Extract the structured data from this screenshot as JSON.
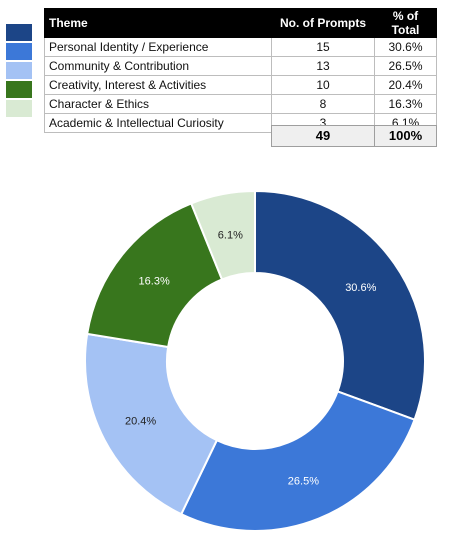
{
  "table": {
    "headers": [
      "Theme",
      "No. of Prompts",
      "% of Total"
    ],
    "rows": [
      {
        "theme": "Personal Identity / Experience",
        "count": "15",
        "pct": "30.6%"
      },
      {
        "theme": "Community & Contribution",
        "count": "13",
        "pct": "26.5%"
      },
      {
        "theme": "Creativity, Interest & Activities",
        "count": "10",
        "pct": "20.4%"
      },
      {
        "theme": "Character & Ethics",
        "count": "8",
        "pct": "16.3%"
      },
      {
        "theme": "Academic & Intellectual Curiosity",
        "count": "3",
        "pct": "6.1%"
      }
    ],
    "total_count": "49",
    "total_pct": "100%"
  },
  "colors": [
    "#1c4587",
    "#3c78d8",
    "#a4c2f4",
    "#38761d",
    "#d9ead3"
  ],
  "chart_data": {
    "type": "pie",
    "style": "donut",
    "categories": [
      "Personal Identity / Experience",
      "Community & Contribution",
      "Creativity, Interest & Activities",
      "Character & Ethics",
      "Academic & Intellectual Curiosity"
    ],
    "values": [
      15,
      13,
      10,
      8,
      3
    ],
    "labels": [
      "30.6%",
      "26.5%",
      "20.4%",
      "16.3%",
      "6.1%"
    ],
    "label_colors": [
      "#ffffff",
      "#ffffff",
      "#222222",
      "#ffffff",
      "#222222"
    ]
  }
}
